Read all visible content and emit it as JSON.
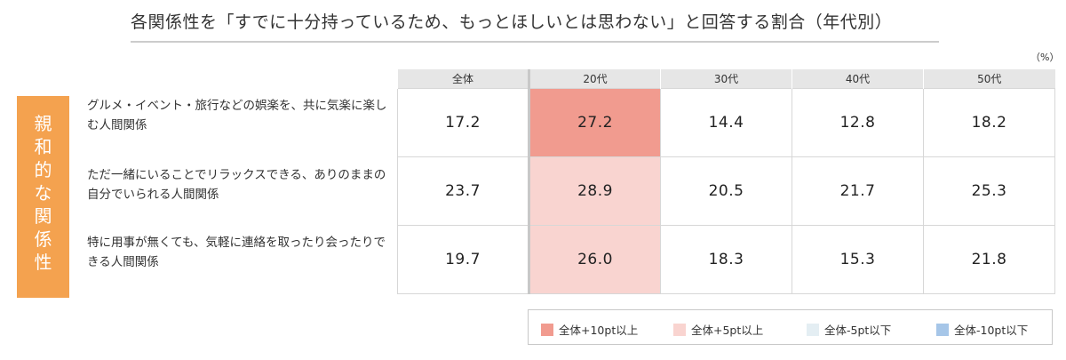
{
  "title": "各関係性を「すでに十分持っているため、もっとほしいとは思わない」と回答する割合（年代別）",
  "unit": "（%）",
  "colors": {
    "header_bg": "#e6e6e6",
    "category_box": "#f4a24f",
    "plus10": "#f19b8f",
    "plus5": "#f9d4d0",
    "minus5": "#e4eef3",
    "minus10": "#a6c6e8"
  },
  "chart_data": {
    "type": "table",
    "title": "各関係性を「すでに十分持っているため、もっとほしいとは思わない」と回答する割合（年代別）",
    "unit": "（%）",
    "category": "親和的な関係性",
    "columns": [
      "全体",
      "20代",
      "30代",
      "40代",
      "50代"
    ],
    "rows": [
      {
        "label": "グルメ・イベント・旅行などの娯楽を、共に気楽に楽しむ人間関係",
        "values": [
          17.2,
          27.2,
          14.4,
          12.8,
          18.2
        ]
      },
      {
        "label": "ただ一緒にいることでリラックスできる、ありのままの自分でいられる人間関係",
        "values": [
          23.7,
          28.9,
          20.5,
          21.7,
          25.3
        ]
      },
      {
        "label": "特に用事が無くても、気軽に連絡を取ったり会ったりできる人間関係",
        "values": [
          19.7,
          26.0,
          18.3,
          15.3,
          21.8
        ]
      }
    ],
    "legend": [
      {
        "label": "全体+10pt以上",
        "color": "#f19b8f"
      },
      {
        "label": "全体+5pt以上",
        "color": "#f9d4d0"
      },
      {
        "label": "全体-5pt以下",
        "color": "#e4eef3"
      },
      {
        "label": "全体-10pt以下",
        "color": "#a6c6e8"
      }
    ]
  }
}
